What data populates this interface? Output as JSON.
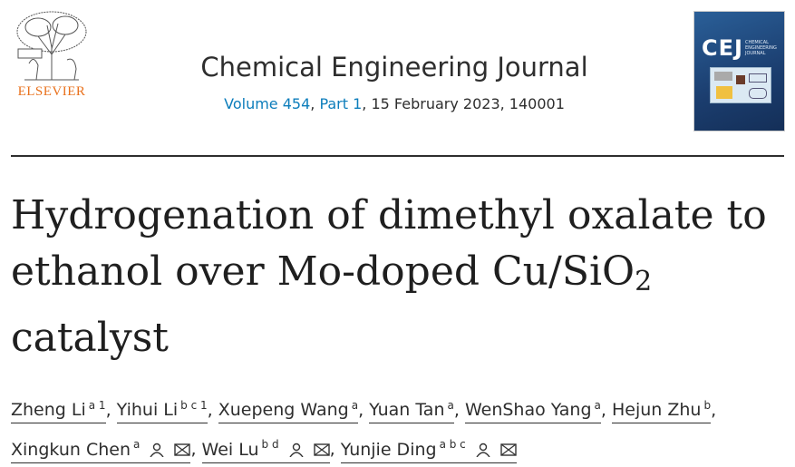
{
  "publisher": {
    "logo_text": "ELSEVIER",
    "logo_icon": "elsevier-tree-logo"
  },
  "journal": {
    "title": "Chemical Engineering Journal",
    "volume": "Volume 454",
    "part": "Part 1",
    "date_issue": ", 15 February 2023, 140001",
    "sep": ", "
  },
  "cover": {
    "abbr": "CEJ",
    "name": "CHEMICAL ENGINEERING JOURNAL"
  },
  "article": {
    "title_line1": "Hydrogenation of dimethyl oxalate to",
    "title_line2": "ethanol over Mo-doped Cu/SiO",
    "title_sub": "2",
    "title_line3": "catalyst"
  },
  "authors": [
    {
      "name": "Zheng Li",
      "aff": "a 1"
    },
    {
      "name": "Yihui Li",
      "aff": "b c 1"
    },
    {
      "name": "Xuepeng Wang",
      "aff": "a"
    },
    {
      "name": "Yuan Tan",
      "aff": "a"
    },
    {
      "name": "WenShao Yang",
      "aff": "a"
    },
    {
      "name": "Hejun Zhu",
      "aff": "b"
    },
    {
      "name": "Xingkun Chen",
      "aff": "a"
    },
    {
      "name": "Wei Lu",
      "aff": "b d"
    },
    {
      "name": "Yunjie Ding",
      "aff": "a b c"
    }
  ],
  "comma": ", "
}
